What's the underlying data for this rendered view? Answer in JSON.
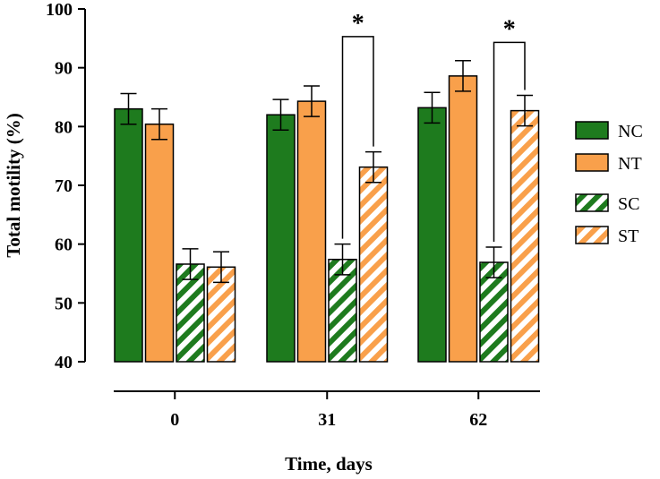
{
  "colors": {
    "green": "#1e7b1e",
    "orange": "#f9a04b",
    "axis": "#000000",
    "background": "#ffffff"
  },
  "chart_data": {
    "type": "bar",
    "title": "",
    "xlabel": "Time, days",
    "ylabel": "Total motility (%)",
    "ylim": [
      40,
      100
    ],
    "yticks": [
      40,
      50,
      60,
      70,
      80,
      90,
      100
    ],
    "categories": [
      "0",
      "31",
      "62"
    ],
    "grid": false,
    "legend_position": "right",
    "series": [
      {
        "name": "NC",
        "color": "#1e7b1e",
        "pattern": "solid",
        "values": [
          83.0,
          82.0,
          83.2
        ],
        "errors": [
          2.6,
          2.6,
          2.6
        ]
      },
      {
        "name": "NT",
        "color": "#f9a04b",
        "pattern": "solid",
        "values": [
          80.4,
          84.3,
          88.6
        ],
        "errors": [
          2.6,
          2.6,
          2.6
        ]
      },
      {
        "name": "SC",
        "color": "#1e7b1e",
        "pattern": "hatched",
        "values": [
          56.6,
          57.4,
          56.9
        ],
        "errors": [
          2.6,
          2.6,
          2.6
        ]
      },
      {
        "name": "ST",
        "color": "#f9a04b",
        "pattern": "hatched",
        "values": [
          56.1,
          73.1,
          82.7
        ],
        "errors": [
          2.6,
          2.6,
          2.6
        ]
      }
    ],
    "annotations": [
      {
        "label": "*",
        "category": "31",
        "from_series": "SC",
        "to_series": "ST",
        "bracket_top": 95.3
      },
      {
        "label": "*",
        "category": "62",
        "from_series": "SC",
        "to_series": "ST",
        "bracket_top": 94.3
      }
    ]
  }
}
